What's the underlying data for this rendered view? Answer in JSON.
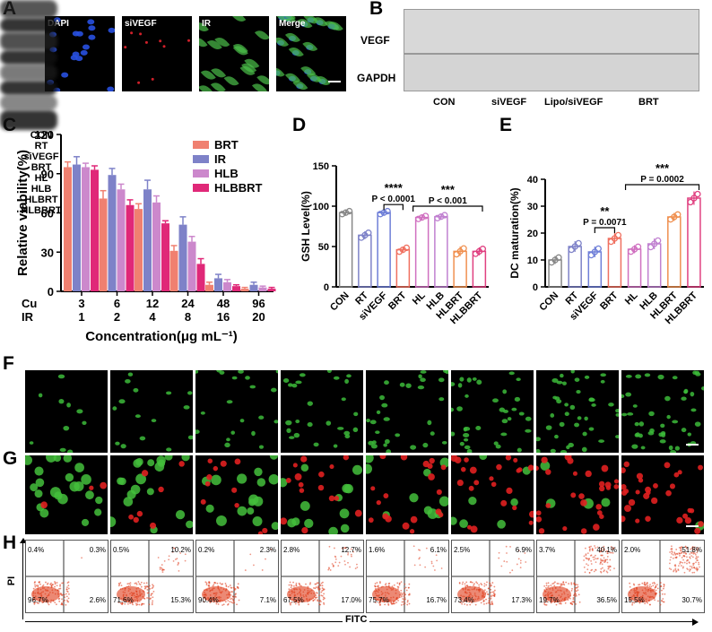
{
  "panels": {
    "A": {
      "label": "A",
      "images": [
        {
          "label": "DAPI",
          "type": "nuclei"
        },
        {
          "label": "siVEGF",
          "type": "red"
        },
        {
          "label": "IR",
          "type": "green"
        },
        {
          "label": "Merge",
          "type": "merge"
        }
      ]
    },
    "B": {
      "label": "B",
      "rows": [
        "VEGF",
        "GAPDH"
      ],
      "lanes": [
        "CON",
        "siVEGF",
        "Lipo/siVEGF",
        "BRT"
      ]
    },
    "C": {
      "label": "C"
    },
    "D": {
      "label": "D"
    },
    "E": {
      "label": "E"
    },
    "F": {
      "label": "F",
      "columns": [
        "CON",
        "RT",
        "siVEGF",
        "BRT",
        "HL",
        "HLB",
        "HLBRT",
        "HLBBRT"
      ]
    },
    "G": {
      "label": "G"
    },
    "H": {
      "label": "H",
      "y_axis_label": "PI",
      "x_axis_label": "FITC",
      "quadrants": [
        {
          "ul": "0.4%",
          "ur": "0.3%",
          "ll": "96.7%",
          "lr": "2.6%"
        },
        {
          "ul": "0.5%",
          "ur": "10.2%",
          "ll": "71.6%",
          "lr": "15.3%"
        },
        {
          "ul": "0.2%",
          "ur": "2.3%",
          "ll": "90.4%",
          "lr": "7.1%"
        },
        {
          "ul": "2.8%",
          "ur": "12.7%",
          "ll": "67.5%",
          "lr": "17.0%"
        },
        {
          "ul": "1.6%",
          "ur": "6.1%",
          "ll": "75.7%",
          "lr": "16.7%"
        },
        {
          "ul": "2.5%",
          "ur": "6.9%",
          "ll": "73.4%",
          "lr": "17.3%"
        },
        {
          "ul": "3.7%",
          "ur": "40.1%",
          "ll": "19.7%",
          "lr": "36.5%"
        },
        {
          "ul": "2.0%",
          "ur": "51.8%",
          "ll": "15.5%",
          "lr": "30.7%"
        }
      ]
    }
  },
  "colors": {
    "BRT": "#f08070",
    "IR": "#7e82c8",
    "HLB": "#cc88cc",
    "HLBBRT": "#e02878",
    "D_groups": [
      "#888888",
      "#7e82c8",
      "#6f7fd8",
      "#f07060",
      "#d070c0",
      "#c080d0",
      "#f09050",
      "#e04080"
    ],
    "E_groups": [
      "#888888",
      "#7e82c8",
      "#6f7fd8",
      "#f07060",
      "#d070c0",
      "#c080d0",
      "#f09050",
      "#e04080"
    ]
  },
  "chart_data": [
    {
      "id": "C",
      "type": "bar",
      "ylabel": "Relative viability(%)",
      "xlabel": "Concentration(μg mL⁻¹)",
      "row_labels": [
        "Cu",
        "IR"
      ],
      "categories_cu": [
        "3",
        "6",
        "12",
        "24",
        "48",
        "96"
      ],
      "categories_ir": [
        "1",
        "2",
        "4",
        "8",
        "16",
        "20"
      ],
      "ylim": [
        0,
        120
      ],
      "yticks": [
        "0",
        "30",
        "60",
        "90",
        "120"
      ],
      "legend_position": "top-right",
      "series": [
        {
          "name": "BRT",
          "values": [
            95,
            71,
            63,
            31,
            5,
            2
          ],
          "err": [
            4,
            6,
            4,
            4,
            2,
            1
          ]
        },
        {
          "name": "IR",
          "values": [
            97,
            89,
            78,
            51,
            10,
            5
          ],
          "err": [
            6,
            5,
            7,
            6,
            3,
            2
          ]
        },
        {
          "name": "HLB",
          "values": [
            95,
            78,
            68,
            38,
            7,
            3
          ],
          "err": [
            3,
            4,
            5,
            4,
            2,
            1
          ]
        },
        {
          "name": "HLBBRT",
          "values": [
            93,
            66,
            52,
            21,
            4,
            2
          ],
          "err": [
            3,
            4,
            2,
            4,
            1,
            1
          ]
        }
      ]
    },
    {
      "id": "D",
      "type": "bar",
      "ylabel": "GSH Level(%)",
      "categories": [
        "CON",
        "RT",
        "siVEGF",
        "BRT",
        "HL",
        "HLB",
        "HLBRT",
        "HLBBRT"
      ],
      "values": [
        92,
        64,
        92,
        46,
        86,
        87,
        44,
        44
      ],
      "err": [
        3,
        5,
        3,
        4,
        3,
        3,
        6,
        5
      ],
      "ylim": [
        0,
        150
      ],
      "yticks": [
        "0",
        "50",
        "100",
        "150"
      ],
      "annotations": [
        {
          "stars": "****",
          "p": "P < 0.0001"
        },
        {
          "stars": "***",
          "p": "P < 0.001"
        }
      ]
    },
    {
      "id": "E",
      "type": "bar",
      "ylabel": "DC maturation(%)",
      "categories": [
        "CON",
        "RT",
        "siVEGF",
        "BRT",
        "HL",
        "HLB",
        "HLBRT",
        "HLBBRT"
      ],
      "values": [
        10,
        15,
        13,
        18,
        14,
        16,
        26,
        33
      ],
      "err": [
        1.5,
        2,
        2,
        2,
        1.5,
        2,
        1.5,
        2.5
      ],
      "ylim": [
        0,
        40
      ],
      "yticks": [
        "0",
        "10",
        "20",
        "30",
        "40"
      ],
      "annotations": [
        {
          "stars": "**",
          "p": "P = 0.0071"
        },
        {
          "stars": "***",
          "p": "P = 0.0002"
        }
      ]
    }
  ]
}
